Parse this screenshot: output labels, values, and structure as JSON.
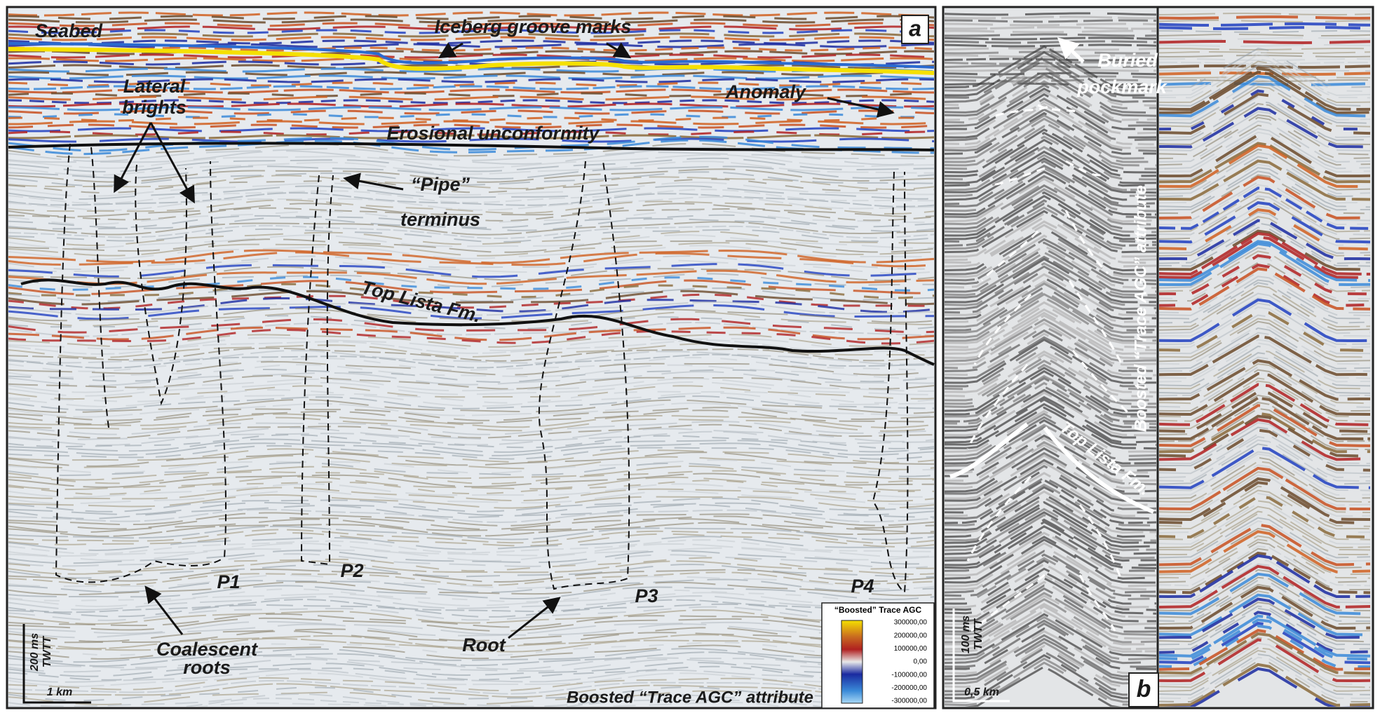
{
  "panel_a": {
    "label": "a",
    "annotations": {
      "seabed": "Seabed",
      "iceberg": "Iceberg  groove marks",
      "lateral_1": "Lateral",
      "lateral_2": "brights",
      "anomaly": "Anomaly",
      "erosional": "Erosional unconformity",
      "pipe_1": "“Pipe”",
      "pipe_2": "terminus",
      "top_lista": "Top  Lista  Fm.",
      "p1": "P1",
      "p2": "P2",
      "p3": "P3",
      "p4": "P4",
      "coalescent_1": "Coalescent",
      "coalescent_2": "roots",
      "root": "Root"
    },
    "scale": {
      "time_1": "200 ms",
      "time_2": "TWTT",
      "distance": "1 km"
    },
    "footer": "Boosted “Trace AGC” attribute",
    "colorbar": {
      "title": "“Boosted” Trace AGC",
      "labels": [
        "300000,00",
        "200000,00",
        "100000,00",
        "0,00",
        "-100000,00",
        "-200000,00",
        "-300000,00"
      ]
    }
  },
  "panel_b": {
    "label": "b",
    "annotations": {
      "buried_1": "Buried",
      "buried_2": "pockmark",
      "attribute": "Boosted  “Trace AGC”  attribute",
      "top_lista": "Top Lista Fm."
    },
    "scale": {
      "time_1": "100 ms",
      "time_2": "TWTT",
      "distance": "0,5 km"
    }
  }
}
